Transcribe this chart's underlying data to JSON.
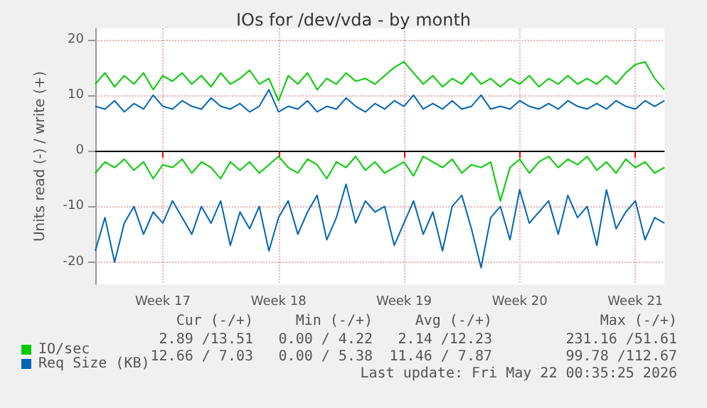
{
  "chart_data": {
    "type": "line",
    "title": "IOs for /dev/vda - by month",
    "ylabel": "Units read (-) / write (+)",
    "categories": [
      null,
      null,
      null,
      null,
      null,
      null,
      null,
      "Week 17",
      null,
      null,
      null,
      null,
      null,
      null,
      null,
      null,
      null,
      null,
      null,
      "Week 18",
      null,
      null,
      null,
      null,
      null,
      null,
      null,
      null,
      null,
      null,
      null,
      null,
      "Week 19",
      null,
      null,
      null,
      null,
      null,
      null,
      null,
      null,
      null,
      null,
      null,
      "Week 20",
      null,
      null,
      null,
      null,
      null,
      null,
      null,
      null,
      null,
      null,
      null,
      "Week 21",
      null,
      null,
      null
    ],
    "series": [
      {
        "name": "IO/sec",
        "color": "#00cc00",
        "values": [
          12,
          14,
          11.5,
          13.5,
          12,
          14,
          11,
          13.5,
          12.5,
          14,
          12,
          13.5,
          11.5,
          14,
          12,
          13,
          14.5,
          12,
          13,
          9,
          13.5,
          12,
          14,
          11,
          13,
          12,
          14,
          12.5,
          13,
          12,
          13.5,
          15,
          16,
          14,
          12,
          13.5,
          11.5,
          13,
          12,
          14,
          12,
          13,
          11.5,
          13,
          12,
          13.5,
          11.5,
          13,
          12,
          13.5,
          12,
          13,
          12,
          13.5,
          12,
          14,
          15.5,
          16,
          13,
          11
        ]
      },
      {
        "color": "#00cc00",
        "values": [
          -4,
          -2,
          -3,
          -1.5,
          -3.5,
          -2,
          -5,
          -2.5,
          -3,
          -1.5,
          -4,
          -2,
          -3,
          -5,
          -2,
          -3.5,
          -2,
          -4,
          -2.5,
          -1,
          -3,
          -4,
          -1.5,
          -2.5,
          -5,
          -2,
          -3,
          -1,
          -3.5,
          -2,
          -4,
          -3,
          -2,
          -4.5,
          -1,
          -2,
          -3,
          -1.5,
          -4,
          -2.5,
          -3,
          -2,
          -9,
          -3,
          -1.5,
          -4,
          -2,
          -1,
          -3,
          -1.5,
          -2.5,
          -1,
          -3.5,
          -2,
          -4,
          -1.5,
          -3,
          -2,
          -4,
          -3
        ]
      },
      {
        "name": "Req Size (KB)",
        "color": "#0066b3",
        "values": [
          8,
          7.5,
          9,
          7,
          8.5,
          7.5,
          10,
          8,
          7.5,
          9,
          8,
          7.5,
          9.5,
          8,
          7.5,
          8.5,
          7,
          8,
          11,
          7,
          8,
          7.5,
          9,
          7,
          8,
          7.5,
          9.5,
          8,
          7,
          8.5,
          7.5,
          9,
          8,
          10,
          7.5,
          8.5,
          7.5,
          9,
          7.5,
          8,
          10,
          7.5,
          8,
          7.5,
          9,
          8,
          7.5,
          8.5,
          7.5,
          9,
          8,
          7.5,
          8.5,
          7.5,
          9,
          8,
          7.5,
          9,
          8,
          9
        ]
      },
      {
        "color": "#0066b3",
        "values": [
          -18,
          -12,
          -20,
          -13,
          -10,
          -15,
          -11,
          -13,
          -9,
          -12,
          -15,
          -10,
          -13,
          -9,
          -17,
          -11,
          -14,
          -10,
          -18,
          -12,
          -9,
          -15,
          -11,
          -8,
          -16,
          -12,
          -6,
          -13,
          -9,
          -11,
          -10,
          -17,
          -13,
          -9,
          -15,
          -11,
          -18,
          -10,
          -8,
          -14,
          -21,
          -12,
          -10,
          -16,
          -7,
          -13,
          -11,
          -9,
          -15,
          -8,
          -12,
          -10,
          -17,
          -7,
          -14,
          -11,
          -9,
          -16,
          -12,
          -13
        ]
      }
    ],
    "ylim": [
      -24,
      22
    ],
    "yticks": [
      -20,
      -10,
      0,
      10,
      20
    ],
    "grid": true,
    "legend": "bottom",
    "marker": "none",
    "line_style": "solid",
    "ref_lines": [
      {
        "axis": "y",
        "value": 0,
        "color": "#000000"
      }
    ],
    "annotations": [
      "Cur (-/+)",
      "Min (-/+)",
      "Avg (-/+)",
      "Max (-/+)",
      "2.89 /13.51",
      "0.00 / 4.22",
      "2.14 /12.23",
      "231.16 /51.61",
      "12.66 / 7.03",
      "0.00 / 5.38",
      "11.46 / 7.87",
      "99.78 /112.67",
      "Last update: Fri May 22 00:35:25 2026"
    ]
  }
}
